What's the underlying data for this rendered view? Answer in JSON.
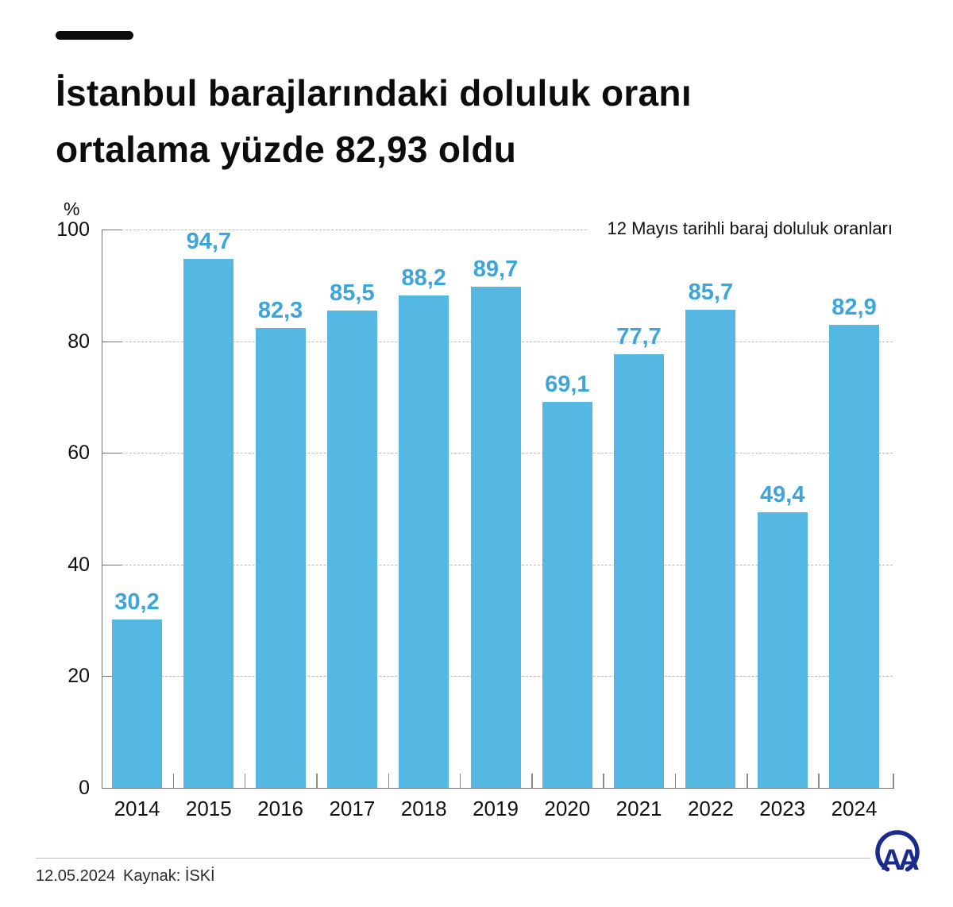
{
  "header": {
    "title_line1": "İstanbul barajlarındaki doluluk oranı",
    "title_line2": "ortalama yüzde 82,93 oldu"
  },
  "chart_data": {
    "type": "bar",
    "title": "İstanbul barajlarındaki doluluk oranı ortalama yüzde 82,93 oldu",
    "annotation": "12 Mayıs tarihli baraj doluluk oranları",
    "unit_label": "%",
    "categories": [
      "2014",
      "2015",
      "2016",
      "2017",
      "2018",
      "2019",
      "2020",
      "2021",
      "2022",
      "2023",
      "2024"
    ],
    "values": [
      30.2,
      94.7,
      82.3,
      85.5,
      88.2,
      89.7,
      69.1,
      77.7,
      85.7,
      49.4,
      82.9
    ],
    "value_labels": [
      "30,2",
      "94,7",
      "82,3",
      "85,5",
      "88,2",
      "89,7",
      "69,1",
      "77,7",
      "85,7",
      "49,4",
      "82,9"
    ],
    "xlabel": "",
    "ylabel": "%",
    "ylim": [
      0,
      100
    ],
    "yticks": [
      0,
      20,
      40,
      60,
      80,
      100
    ],
    "grid": "horizontal-dashed",
    "legend": "none"
  },
  "colors": {
    "bar": "#55b8e3",
    "value_label": "#3da5d9",
    "accent_dash": "#0c0c0c",
    "axis": "#707070",
    "gridline": "#b8b8b8",
    "logo": "#1a2b8d"
  },
  "footer": {
    "date": "12.05.2024",
    "source": "Kaynak: İSKİ"
  }
}
